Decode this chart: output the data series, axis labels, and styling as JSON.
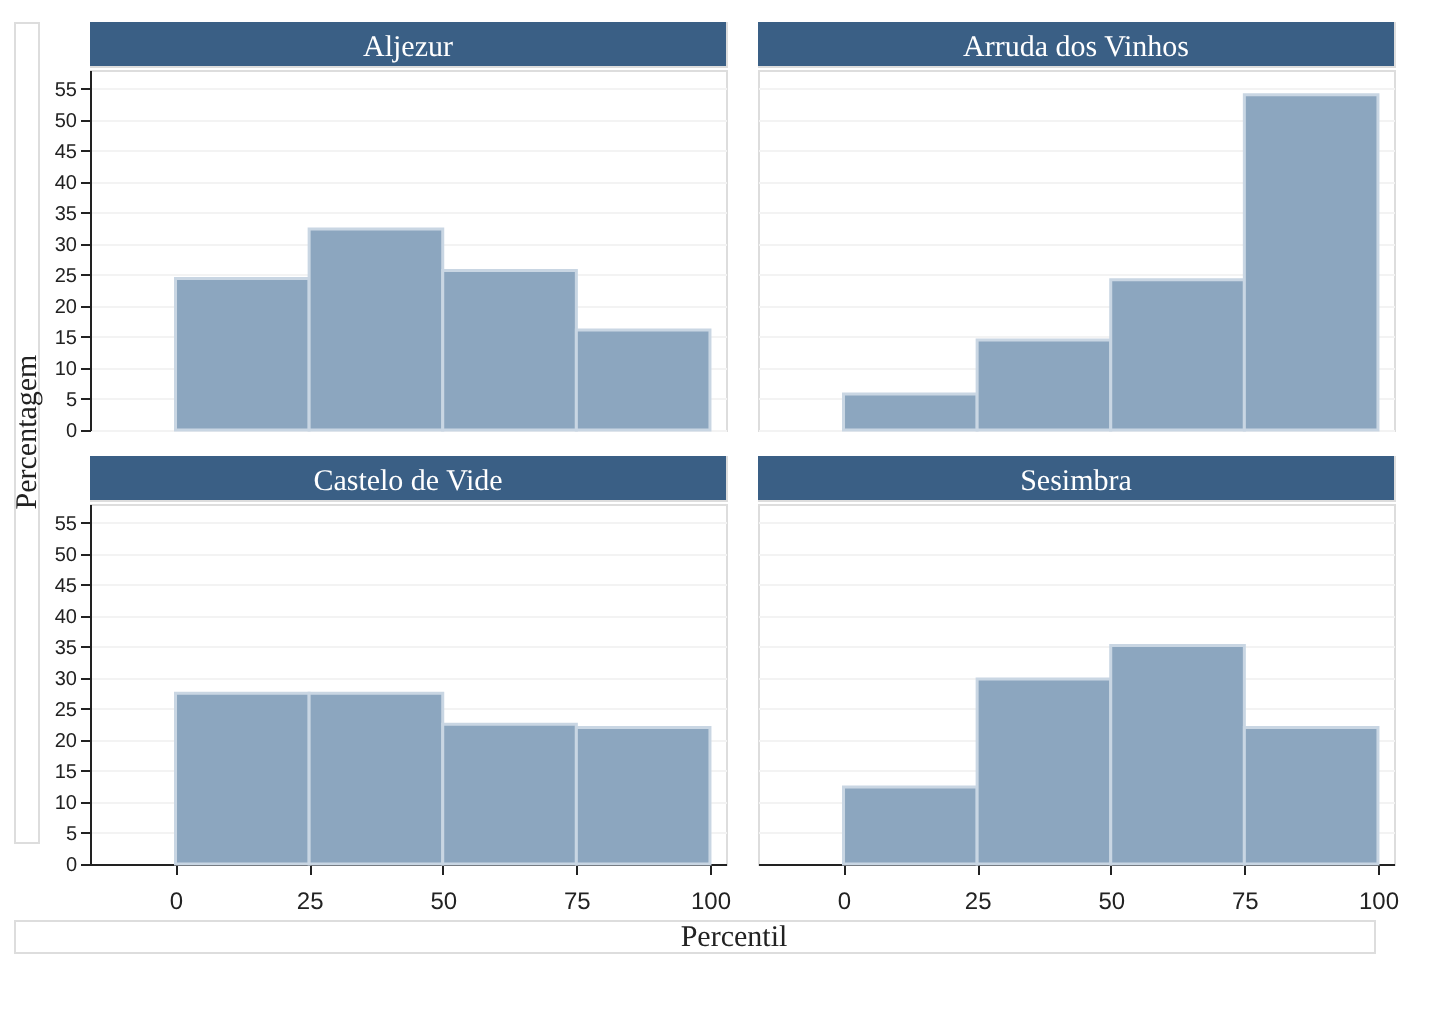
{
  "chart_data": [
    {
      "type": "histogram",
      "title": "Aljezur",
      "ylabel": "Percentagem",
      "bins": [
        0,
        25,
        50,
        75,
        100
      ],
      "values": [
        24.4,
        32.4,
        25.7,
        16.1
      ],
      "color": "#8ca6bf",
      "xlim": [
        -16,
        103
      ],
      "ylim": [
        0,
        58
      ],
      "xticks": [
        0,
        25,
        50,
        75,
        100
      ],
      "yticks": [
        0,
        5,
        10,
        15,
        20,
        25,
        30,
        35,
        40,
        45,
        50,
        55
      ],
      "grid": "y",
      "tick_labels": "y"
    },
    {
      "type": "histogram",
      "title": "Arruda dos Vinhos",
      "bins": [
        0,
        25,
        50,
        75,
        100
      ],
      "values": [
        5.8,
        14.5,
        24.2,
        54.0
      ],
      "color": "#8ca6bf",
      "xlim": [
        -16,
        103
      ],
      "ylim": [
        0,
        58
      ],
      "xticks": [
        0,
        25,
        50,
        75,
        100
      ],
      "yticks": [
        0,
        5,
        10,
        15,
        20,
        25,
        30,
        35,
        40,
        45,
        50,
        55
      ],
      "grid": "y",
      "tick_labels": false
    },
    {
      "type": "histogram",
      "title": "Castelo de Vide",
      "xlabel": "Percentil",
      "bins": [
        0,
        25,
        50,
        75,
        100
      ],
      "values": [
        27.5,
        27.5,
        22.5,
        22.0
      ],
      "color": "#8ca6bf",
      "xlim": [
        -16,
        103
      ],
      "ylim": [
        0,
        58
      ],
      "xticks": [
        0,
        25,
        50,
        75,
        100
      ],
      "yticks": [
        0,
        5,
        10,
        15,
        20,
        25,
        30,
        35,
        40,
        45,
        50,
        55
      ],
      "grid": "y"
    },
    {
      "type": "histogram",
      "title": "Sesimbra",
      "bins": [
        0,
        25,
        50,
        75,
        100
      ],
      "values": [
        12.4,
        29.8,
        35.2,
        22.0
      ],
      "color": "#8ca6bf",
      "xlim": [
        -16,
        103
      ],
      "ylim": [
        0,
        58
      ],
      "xticks": [
        0,
        25,
        50,
        75,
        100
      ],
      "yticks": [
        0,
        5,
        10,
        15,
        20,
        25,
        30,
        35,
        40,
        45,
        50,
        55
      ],
      "grid": "y",
      "tick_labels": "x"
    }
  ]
}
